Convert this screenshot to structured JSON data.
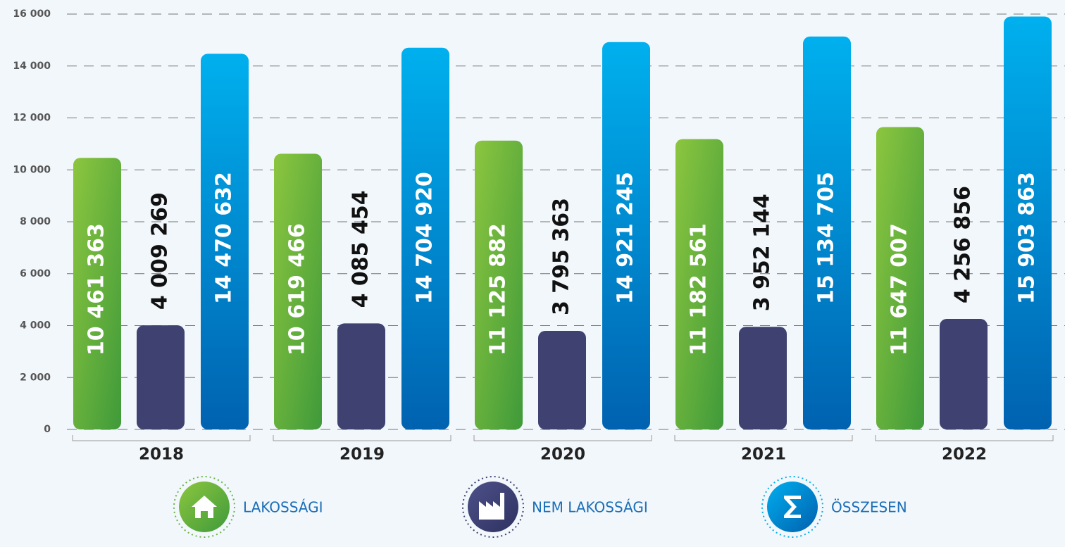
{
  "chart_data": {
    "type": "bar",
    "categories": [
      "2018",
      "2019",
      "2020",
      "2021",
      "2022"
    ],
    "series": [
      {
        "name": "LAKOSSÁGI",
        "color": "#6ab344",
        "values": [
          10461.363,
          10619.466,
          11125.882,
          11182.561,
          11647.007
        ],
        "value_labels": [
          "10 461 363",
          "10 619 466",
          "11 125 882",
          "11 182 561",
          "11 647 007"
        ]
      },
      {
        "name": "NEM LAKOSSÁGI",
        "color": "#3f4270",
        "values": [
          4009.269,
          4085.454,
          3795.363,
          3952.144,
          4256.856
        ],
        "value_labels": [
          "4 009 269",
          "4 085 454",
          "3 795 363",
          "3 952 144",
          "4 256 856"
        ]
      },
      {
        "name": "ÖSSZESEN",
        "color": "#0077c8",
        "values": [
          14470.632,
          14704.92,
          14921.245,
          15134.705,
          15903.863
        ],
        "value_labels": [
          "14 470 632",
          "14 704 920",
          "14 921 245",
          "15 134 705",
          "15 903 863"
        ]
      }
    ],
    "ylim": [
      0,
      16000
    ],
    "yticks": [
      0,
      {
        "value": 2000,
        "label": "2 000"
      },
      {
        "value": 4000,
        "label": "4 000"
      },
      {
        "value": 6000,
        "label": "6 000"
      },
      {
        "value": 8000,
        "label": "8 000"
      },
      {
        "value": 10000,
        "label": "10 000"
      },
      {
        "value": 12000,
        "label": "12 000"
      },
      {
        "value": 14000,
        "label": "14 000"
      },
      {
        "value": 16000,
        "label": "16 000"
      }
    ],
    "grid": true
  }
}
